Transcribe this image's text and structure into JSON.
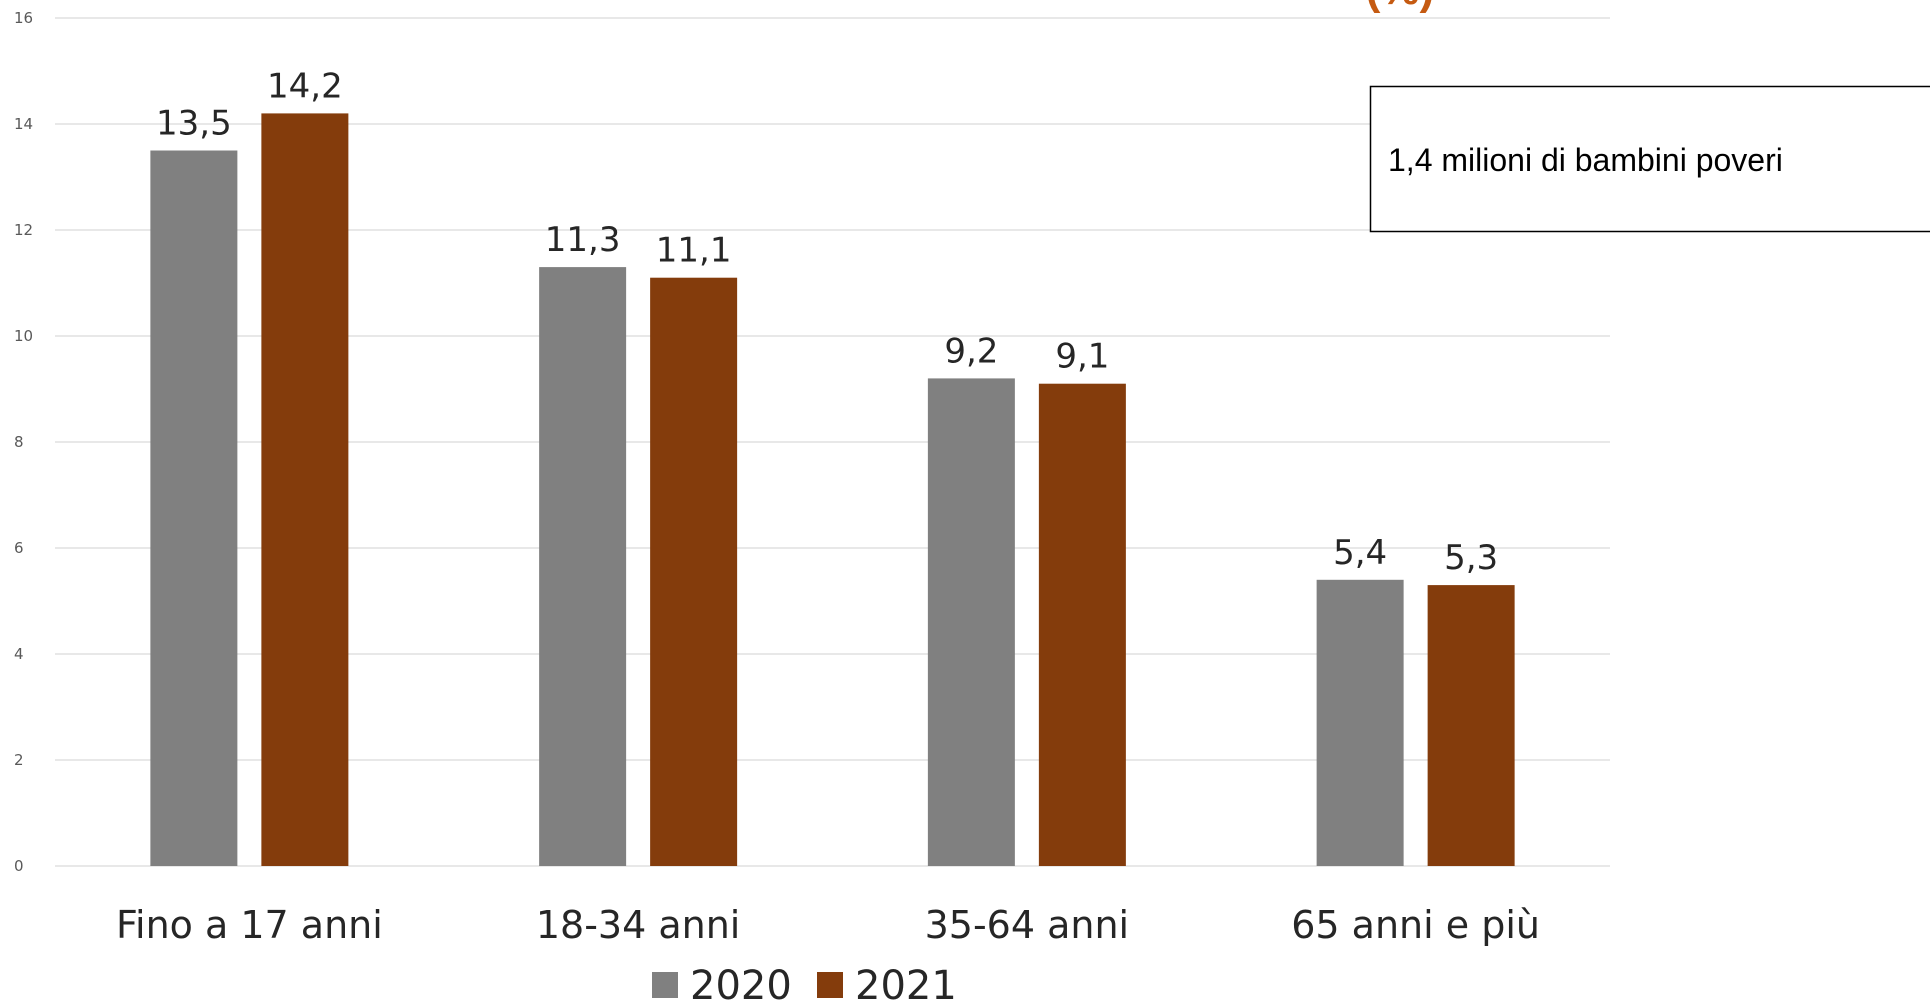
{
  "chart_data": {
    "type": "bar",
    "categories": [
      "Fino a 17 anni",
      "18-34 anni",
      "35-64 anni",
      "65 anni e più"
    ],
    "series": [
      {
        "name": "2020",
        "values": [
          13.5,
          11.3,
          9.2,
          5.4
        ],
        "labels": [
          "13,5",
          "11,3",
          "9,2",
          "5,4"
        ],
        "color": "#808080"
      },
      {
        "name": "2021",
        "values": [
          14.2,
          11.1,
          9.1,
          5.3
        ],
        "labels": [
          "14,2",
          "11,1",
          "9,1",
          "5,3"
        ],
        "color": "#843C0C"
      }
    ],
    "ylim": [
      0,
      16
    ],
    "yticks": [
      0,
      2,
      4,
      6,
      8,
      10,
      12,
      14,
      16
    ],
    "grid": true,
    "legend_position": "bottom",
    "annotation": "1,4 milioni di bambini poveri",
    "corner_title_fragment": "(%)",
    "corner_title_color": "#C55A11"
  }
}
